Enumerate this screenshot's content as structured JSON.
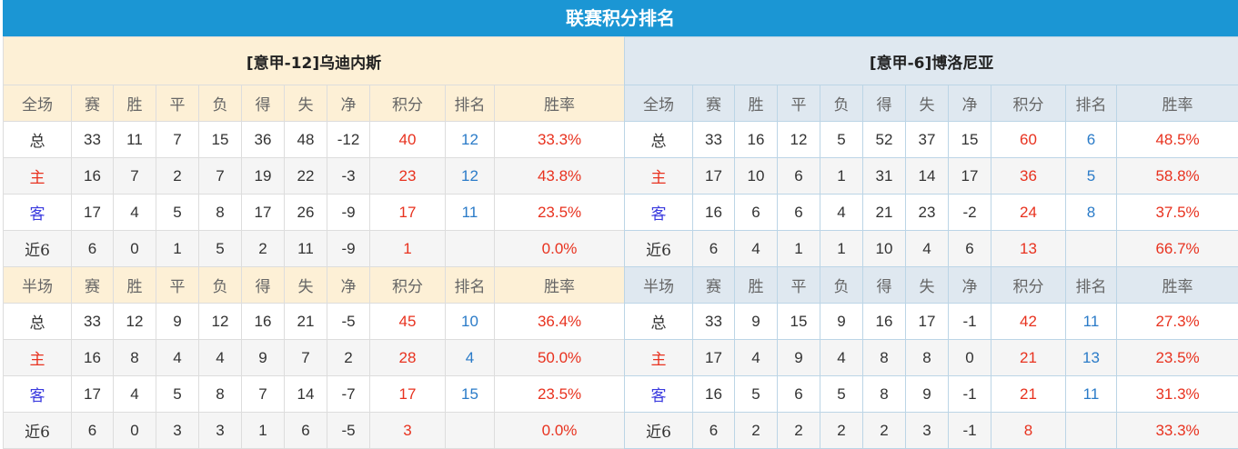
{
  "title": "联赛积分排名",
  "colors": {
    "title_bg": "#1b96d4",
    "left_header_bg": "#fdf0d6",
    "right_header_bg": "#dfe8f0",
    "points": "#e8321f",
    "rank": "#2a7bc8",
    "away_label": "#3a3adf"
  },
  "columns": [
    "赛",
    "胜",
    "平",
    "负",
    "得",
    "失",
    "净",
    "积分",
    "排名",
    "胜率"
  ],
  "teams": [
    {
      "name": "[意甲-12]乌迪内斯",
      "sections": [
        {
          "label": "全场",
          "rows": [
            [
              "总",
              "33",
              "11",
              "7",
              "15",
              "36",
              "48",
              "-12",
              "40",
              "12",
              "33.3%"
            ],
            [
              "主",
              "16",
              "7",
              "2",
              "7",
              "19",
              "22",
              "-3",
              "23",
              "12",
              "43.8%"
            ],
            [
              "客",
              "17",
              "4",
              "5",
              "8",
              "17",
              "26",
              "-9",
              "17",
              "11",
              "23.5%"
            ],
            [
              "近6",
              "6",
              "0",
              "1",
              "5",
              "2",
              "11",
              "-9",
              "1",
              "",
              "0.0%"
            ]
          ]
        },
        {
          "label": "半场",
          "rows": [
            [
              "总",
              "33",
              "12",
              "9",
              "12",
              "16",
              "21",
              "-5",
              "45",
              "10",
              "36.4%"
            ],
            [
              "主",
              "16",
              "8",
              "4",
              "4",
              "9",
              "7",
              "2",
              "28",
              "4",
              "50.0%"
            ],
            [
              "客",
              "17",
              "4",
              "5",
              "8",
              "7",
              "14",
              "-7",
              "17",
              "15",
              "23.5%"
            ],
            [
              "近6",
              "6",
              "0",
              "3",
              "3",
              "1",
              "6",
              "-5",
              "3",
              "",
              "0.0%"
            ]
          ]
        }
      ]
    },
    {
      "name": "[意甲-6]博洛尼亚",
      "sections": [
        {
          "label": "全场",
          "rows": [
            [
              "总",
              "33",
              "16",
              "12",
              "5",
              "52",
              "37",
              "15",
              "60",
              "6",
              "48.5%"
            ],
            [
              "主",
              "17",
              "10",
              "6",
              "1",
              "31",
              "14",
              "17",
              "36",
              "5",
              "58.8%"
            ],
            [
              "客",
              "16",
              "6",
              "6",
              "4",
              "21",
              "23",
              "-2",
              "24",
              "8",
              "37.5%"
            ],
            [
              "近6",
              "6",
              "4",
              "1",
              "1",
              "10",
              "4",
              "6",
              "13",
              "",
              "66.7%"
            ]
          ]
        },
        {
          "label": "半场",
          "rows": [
            [
              "总",
              "33",
              "9",
              "15",
              "9",
              "16",
              "17",
              "-1",
              "42",
              "11",
              "27.3%"
            ],
            [
              "主",
              "17",
              "4",
              "9",
              "4",
              "8",
              "8",
              "0",
              "21",
              "13",
              "23.5%"
            ],
            [
              "客",
              "16",
              "5",
              "6",
              "5",
              "8",
              "9",
              "-1",
              "21",
              "11",
              "31.3%"
            ],
            [
              "近6",
              "6",
              "2",
              "2",
              "2",
              "2",
              "3",
              "-1",
              "8",
              "",
              "33.3%"
            ]
          ]
        }
      ]
    }
  ]
}
